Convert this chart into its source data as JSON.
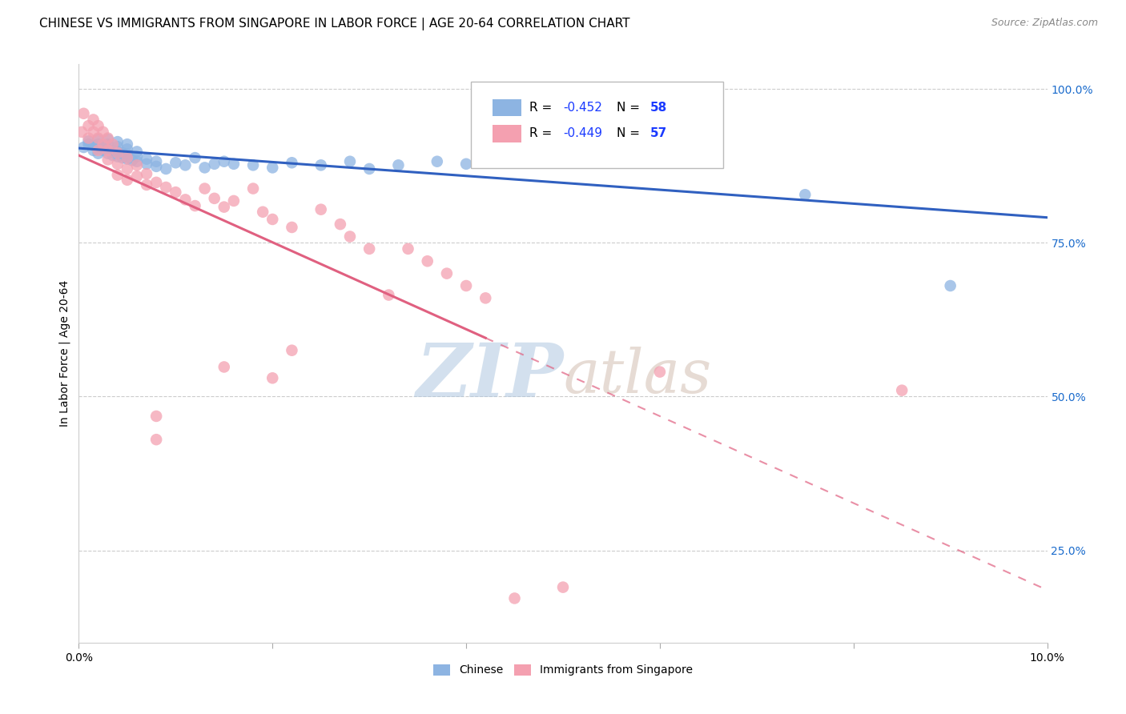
{
  "title": "CHINESE VS IMMIGRANTS FROM SINGAPORE IN LABOR FORCE | AGE 20-64 CORRELATION CHART",
  "source_text": "Source: ZipAtlas.com",
  "ylabel": "In Labor Force | Age 20-64",
  "xlabel": "",
  "xlim": [
    0.0,
    0.1
  ],
  "ylim": [
    0.1,
    1.04
  ],
  "xtick_vals": [
    0.0,
    0.02,
    0.04,
    0.06,
    0.08,
    0.1
  ],
  "xtick_labels": [
    "0.0%",
    "",
    "",
    "",
    "",
    "10.0%"
  ],
  "ytick_vals": [
    0.25,
    0.5,
    0.75,
    1.0
  ],
  "ytick_labels_right": [
    "25.0%",
    "50.0%",
    "75.0%",
    "100.0%"
  ],
  "blue_R": -0.452,
  "blue_N": 58,
  "pink_R": -0.449,
  "pink_N": 57,
  "legend_label_blue": "Chinese",
  "legend_label_pink": "Immigrants from Singapore",
  "blue_color": "#8db4e2",
  "pink_color": "#f4a0b0",
  "blue_line_color": "#3060c0",
  "pink_line_color": "#e06080",
  "blue_scatter": [
    [
      0.0005,
      0.905
    ],
    [
      0.001,
      0.91
    ],
    [
      0.001,
      0.915
    ],
    [
      0.0015,
      0.9
    ],
    [
      0.0015,
      0.908
    ],
    [
      0.002,
      0.895
    ],
    [
      0.002,
      0.902
    ],
    [
      0.002,
      0.91
    ],
    [
      0.002,
      0.918
    ],
    [
      0.0025,
      0.9
    ],
    [
      0.0025,
      0.908
    ],
    [
      0.003,
      0.895
    ],
    [
      0.003,
      0.902
    ],
    [
      0.003,
      0.91
    ],
    [
      0.003,
      0.918
    ],
    [
      0.0035,
      0.892
    ],
    [
      0.0035,
      0.9
    ],
    [
      0.004,
      0.89
    ],
    [
      0.004,
      0.898
    ],
    [
      0.004,
      0.906
    ],
    [
      0.004,
      0.914
    ],
    [
      0.0045,
      0.888
    ],
    [
      0.0045,
      0.896
    ],
    [
      0.005,
      0.886
    ],
    [
      0.005,
      0.894
    ],
    [
      0.005,
      0.902
    ],
    [
      0.005,
      0.91
    ],
    [
      0.0055,
      0.884
    ],
    [
      0.006,
      0.882
    ],
    [
      0.006,
      0.89
    ],
    [
      0.006,
      0.898
    ],
    [
      0.007,
      0.878
    ],
    [
      0.007,
      0.886
    ],
    [
      0.008,
      0.874
    ],
    [
      0.008,
      0.882
    ],
    [
      0.009,
      0.87
    ],
    [
      0.01,
      0.88
    ],
    [
      0.011,
      0.876
    ],
    [
      0.012,
      0.888
    ],
    [
      0.013,
      0.872
    ],
    [
      0.014,
      0.878
    ],
    [
      0.015,
      0.882
    ],
    [
      0.016,
      0.878
    ],
    [
      0.018,
      0.876
    ],
    [
      0.02,
      0.872
    ],
    [
      0.022,
      0.88
    ],
    [
      0.025,
      0.876
    ],
    [
      0.028,
      0.882
    ],
    [
      0.03,
      0.87
    ],
    [
      0.033,
      0.876
    ],
    [
      0.037,
      0.882
    ],
    [
      0.04,
      0.878
    ],
    [
      0.042,
      0.882
    ],
    [
      0.048,
      0.886
    ],
    [
      0.055,
      0.893
    ],
    [
      0.06,
      0.91
    ],
    [
      0.075,
      0.828
    ],
    [
      0.09,
      0.68
    ]
  ],
  "pink_scatter": [
    [
      0.0003,
      0.93
    ],
    [
      0.0005,
      0.96
    ],
    [
      0.001,
      0.94
    ],
    [
      0.001,
      0.92
    ],
    [
      0.0015,
      0.95
    ],
    [
      0.0015,
      0.93
    ],
    [
      0.002,
      0.94
    ],
    [
      0.002,
      0.92
    ],
    [
      0.002,
      0.9
    ],
    [
      0.0025,
      0.93
    ],
    [
      0.0025,
      0.91
    ],
    [
      0.003,
      0.92
    ],
    [
      0.003,
      0.9
    ],
    [
      0.003,
      0.885
    ],
    [
      0.0035,
      0.91
    ],
    [
      0.004,
      0.896
    ],
    [
      0.004,
      0.878
    ],
    [
      0.004,
      0.86
    ],
    [
      0.005,
      0.888
    ],
    [
      0.005,
      0.87
    ],
    [
      0.005,
      0.852
    ],
    [
      0.006,
      0.876
    ],
    [
      0.006,
      0.858
    ],
    [
      0.007,
      0.862
    ],
    [
      0.007,
      0.844
    ],
    [
      0.008,
      0.848
    ],
    [
      0.009,
      0.84
    ],
    [
      0.01,
      0.832
    ],
    [
      0.011,
      0.82
    ],
    [
      0.012,
      0.81
    ],
    [
      0.013,
      0.838
    ],
    [
      0.014,
      0.822
    ],
    [
      0.015,
      0.808
    ],
    [
      0.016,
      0.818
    ],
    [
      0.018,
      0.838
    ],
    [
      0.019,
      0.8
    ],
    [
      0.02,
      0.788
    ],
    [
      0.022,
      0.775
    ],
    [
      0.025,
      0.804
    ],
    [
      0.027,
      0.78
    ],
    [
      0.028,
      0.76
    ],
    [
      0.03,
      0.74
    ],
    [
      0.032,
      0.665
    ],
    [
      0.034,
      0.74
    ],
    [
      0.036,
      0.72
    ],
    [
      0.038,
      0.7
    ],
    [
      0.04,
      0.68
    ],
    [
      0.042,
      0.66
    ],
    [
      0.015,
      0.548
    ],
    [
      0.02,
      0.53
    ],
    [
      0.022,
      0.575
    ],
    [
      0.05,
      0.19
    ],
    [
      0.008,
      0.43
    ],
    [
      0.008,
      0.468
    ],
    [
      0.06,
      0.54
    ],
    [
      0.085,
      0.51
    ],
    [
      0.045,
      0.172
    ]
  ],
  "watermark_zip_color": "#b0c8e0",
  "watermark_atlas_color": "#c8b0a0",
  "background_color": "#ffffff",
  "grid_color": "#cccccc",
  "title_fontsize": 11,
  "axis_label_fontsize": 10,
  "tick_fontsize": 10,
  "legend_R_color": "#1a3aff",
  "right_ytick_color": "#1a6bcc"
}
